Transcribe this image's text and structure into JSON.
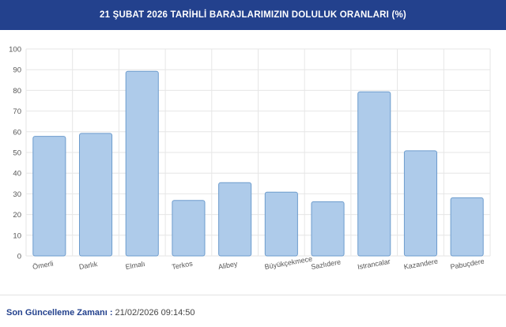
{
  "header": {
    "title": "21 ŞUBAT 2026 TARİHLİ BARAJLARIMIZIN DOLULUK ORANLARI (%)"
  },
  "footer": {
    "label": "Son Güncelleme Zamanı :",
    "value": "21/02/2026 09:14:50"
  },
  "colors": {
    "header_bg": "#23418d",
    "bar_fill": "#aecbea",
    "bar_stroke": "#6d9ccd"
  },
  "chart_data": {
    "type": "bar",
    "title": "21 ŞUBAT 2026 TARİHLİ BARAJLARIMIZIN DOLULUK ORANLARI (%)",
    "categories": [
      "Ömerli",
      "Darlık",
      "Elmalı",
      "Terkos",
      "Alibey",
      "Büyükçekmece",
      "Sazlıdere",
      "Istrancalar",
      "Kazandere",
      "Pabuçdere"
    ],
    "values": [
      57.8,
      59.2,
      89.2,
      26.8,
      35.4,
      30.8,
      26.2,
      79.3,
      50.8,
      28.1
    ],
    "ylim": [
      0,
      100
    ],
    "yticks": [
      0,
      10,
      20,
      30,
      40,
      50,
      60,
      70,
      80,
      90,
      100
    ],
    "grid": true,
    "xlabel": "",
    "ylabel": ""
  }
}
